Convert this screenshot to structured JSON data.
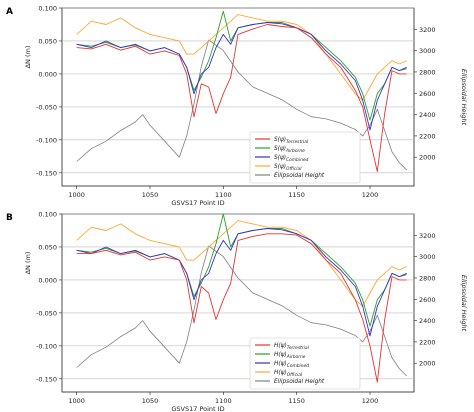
{
  "chart_data": [
    {
      "type": "line",
      "panel_label": "A",
      "xlabel": "GSVS17 Point ID",
      "ylabel": "ΔN (m)",
      "y2label": "Ellipsoidal Height",
      "xlim": [
        990,
        1230
      ],
      "ylim": [
        -0.17,
        0.1
      ],
      "y2lim": [
        1730,
        3400
      ],
      "xticks": [
        "1000",
        "1050",
        "1100",
        "1150",
        "1200"
      ],
      "yticks": [
        "0.100",
        "0.050",
        "0.000",
        "-0.050",
        "-0.100",
        "-0.150"
      ],
      "y2ticks": [
        "3200",
        "3000",
        "2800",
        "2600",
        "2400",
        "2200",
        "2000"
      ],
      "grid": true,
      "legend_position": "lower-center-right",
      "series": [
        {
          "name": "S(ψ)Terrestrial",
          "label_main": "S(ψ)",
          "label_sub": "Terrestrial",
          "color": "#e8332f",
          "axis": "left",
          "x": [
            1000,
            1010,
            1020,
            1030,
            1040,
            1050,
            1060,
            1070,
            1075,
            1080,
            1085,
            1090,
            1095,
            1100,
            1105,
            1110,
            1120,
            1130,
            1140,
            1150,
            1160,
            1170,
            1180,
            1190,
            1195,
            1200,
            1205,
            1210,
            1215,
            1220,
            1225
          ],
          "y": [
            0.04,
            0.038,
            0.045,
            0.036,
            0.042,
            0.03,
            0.035,
            0.028,
            0.0,
            -0.065,
            -0.015,
            -0.02,
            -0.06,
            -0.03,
            -0.005,
            0.06,
            0.068,
            0.075,
            0.072,
            0.07,
            0.055,
            0.03,
            0.01,
            -0.025,
            -0.05,
            -0.1,
            -0.148,
            -0.06,
            0.005,
            0.0,
            0.0
          ]
        },
        {
          "name": "S(ψ)Airborne",
          "label_main": "S(ψ)",
          "label_sub": "Airborne",
          "color": "#2ca02c",
          "axis": "left",
          "x": [
            1000,
            1010,
            1020,
            1030,
            1040,
            1050,
            1060,
            1070,
            1075,
            1080,
            1085,
            1090,
            1095,
            1100,
            1105,
            1110,
            1120,
            1130,
            1140,
            1150,
            1160,
            1170,
            1180,
            1190,
            1195,
            1200,
            1205,
            1210,
            1215,
            1220,
            1225
          ],
          "y": [
            0.045,
            0.042,
            0.048,
            0.04,
            0.044,
            0.035,
            0.04,
            0.03,
            0.01,
            -0.025,
            -0.005,
            0.02,
            0.055,
            0.095,
            0.05,
            0.07,
            0.075,
            0.078,
            0.078,
            0.07,
            0.06,
            0.04,
            0.02,
            -0.005,
            -0.03,
            -0.07,
            -0.03,
            -0.015,
            0.01,
            0.005,
            0.008
          ]
        },
        {
          "name": "S(ψ)Combined",
          "label_main": "S(ψ)",
          "label_sub": "Combined",
          "color": "#3333cc",
          "axis": "left",
          "x": [
            1000,
            1010,
            1020,
            1030,
            1040,
            1050,
            1060,
            1070,
            1075,
            1080,
            1085,
            1090,
            1095,
            1100,
            1105,
            1110,
            1120,
            1130,
            1140,
            1150,
            1160,
            1170,
            1180,
            1190,
            1195,
            1200,
            1205,
            1210,
            1215,
            1220,
            1225
          ],
          "y": [
            0.045,
            0.04,
            0.05,
            0.04,
            0.045,
            0.035,
            0.04,
            0.03,
            0.01,
            -0.03,
            0.0,
            0.01,
            0.04,
            0.06,
            0.045,
            0.07,
            0.075,
            0.078,
            0.076,
            0.07,
            0.06,
            0.035,
            0.015,
            -0.01,
            -0.04,
            -0.085,
            -0.04,
            -0.015,
            0.01,
            0.005,
            0.01
          ]
        },
        {
          "name": "S(ψ)Official",
          "label_main": "S(ψ)",
          "label_sub": "Official",
          "color": "#ffa733",
          "axis": "left",
          "x": [
            1000,
            1010,
            1020,
            1030,
            1040,
            1050,
            1060,
            1070,
            1075,
            1080,
            1085,
            1090,
            1095,
            1100,
            1105,
            1110,
            1120,
            1130,
            1140,
            1150,
            1160,
            1170,
            1180,
            1190,
            1195,
            1200,
            1205,
            1210,
            1215,
            1220,
            1225
          ],
          "y": [
            0.06,
            0.08,
            0.075,
            0.085,
            0.07,
            0.06,
            0.055,
            0.05,
            0.03,
            0.03,
            0.04,
            0.05,
            0.06,
            0.07,
            0.08,
            0.09,
            0.085,
            0.08,
            0.08,
            0.075,
            0.06,
            0.03,
            0.0,
            -0.03,
            -0.04,
            -0.02,
            0.0,
            0.01,
            0.02,
            0.015,
            0.02
          ]
        },
        {
          "name": "Ellipsoidal Height",
          "label_main": "Ellipsoidal Height",
          "label_sub": "",
          "color": "#808080",
          "axis": "right",
          "x": [
            1000,
            1010,
            1020,
            1030,
            1040,
            1045,
            1050,
            1060,
            1070,
            1075,
            1080,
            1085,
            1090,
            1100,
            1110,
            1120,
            1130,
            1140,
            1150,
            1160,
            1170,
            1180,
            1190,
            1195,
            1200,
            1205,
            1210,
            1215,
            1220,
            1225
          ],
          "y": [
            1960,
            2080,
            2150,
            2250,
            2330,
            2400,
            2300,
            2150,
            2000,
            2200,
            2500,
            2850,
            3100,
            3000,
            2800,
            2660,
            2600,
            2540,
            2450,
            2380,
            2360,
            2320,
            2260,
            2200,
            2300,
            2450,
            2250,
            2050,
            1950,
            1880
          ]
        }
      ]
    },
    {
      "type": "line",
      "panel_label": "B",
      "xlabel": "GSVS17 Point ID",
      "ylabel": "ΔN (m)",
      "y2label": "Ellipsoidal Height",
      "xlim": [
        990,
        1230
      ],
      "ylim": [
        -0.17,
        0.1
      ],
      "y2lim": [
        1730,
        3400
      ],
      "xticks": [
        "1000",
        "1050",
        "1100",
        "1150",
        "1200"
      ],
      "yticks": [
        "0.100",
        "0.050",
        "0.000",
        "-0.050",
        "-0.100",
        "-0.150"
      ],
      "y2ticks": [
        "3200",
        "3000",
        "2800",
        "2600",
        "2400",
        "2200",
        "2000"
      ],
      "grid": true,
      "legend_position": "lower-center-right",
      "series": [
        {
          "name": "H(ψ)Terrestrial",
          "label_main": "H(ψ)",
          "label_sub": "Terrestrial",
          "color": "#e8332f",
          "axis": "left",
          "x": [
            1000,
            1010,
            1020,
            1030,
            1040,
            1050,
            1060,
            1070,
            1075,
            1080,
            1085,
            1090,
            1095,
            1100,
            1105,
            1110,
            1120,
            1130,
            1140,
            1150,
            1160,
            1170,
            1180,
            1190,
            1195,
            1200,
            1205,
            1210,
            1215,
            1220,
            1225
          ],
          "y": [
            0.04,
            0.04,
            0.045,
            0.038,
            0.042,
            0.03,
            0.035,
            0.03,
            0.0,
            -0.065,
            -0.01,
            -0.02,
            -0.06,
            -0.03,
            -0.005,
            0.06,
            0.066,
            0.07,
            0.07,
            0.068,
            0.055,
            0.03,
            0.01,
            -0.03,
            -0.06,
            -0.1,
            -0.155,
            -0.06,
            0.005,
            0.0,
            0.0
          ]
        },
        {
          "name": "H(ψ)Airborne",
          "label_main": "H(ψ)",
          "label_sub": "Airborne",
          "color": "#2ca02c",
          "axis": "left",
          "x": [
            1000,
            1010,
            1020,
            1030,
            1040,
            1050,
            1060,
            1070,
            1075,
            1080,
            1085,
            1090,
            1095,
            1100,
            1105,
            1110,
            1120,
            1130,
            1140,
            1150,
            1160,
            1170,
            1180,
            1190,
            1195,
            1200,
            1205,
            1210,
            1215,
            1220,
            1225
          ],
          "y": [
            0.045,
            0.042,
            0.048,
            0.04,
            0.044,
            0.035,
            0.04,
            0.03,
            0.01,
            -0.025,
            -0.005,
            0.02,
            0.055,
            0.1,
            0.05,
            0.07,
            0.075,
            0.078,
            0.078,
            0.07,
            0.06,
            0.04,
            0.02,
            -0.005,
            -0.03,
            -0.07,
            -0.03,
            -0.015,
            0.01,
            0.005,
            0.008
          ]
        },
        {
          "name": "H(ψ)Combined",
          "label_main": "H(ψ)",
          "label_sub": "Combined",
          "color": "#3333cc",
          "axis": "left",
          "x": [
            1000,
            1010,
            1020,
            1030,
            1040,
            1050,
            1060,
            1070,
            1075,
            1080,
            1085,
            1090,
            1095,
            1100,
            1105,
            1110,
            1120,
            1130,
            1140,
            1150,
            1160,
            1170,
            1180,
            1190,
            1195,
            1200,
            1205,
            1210,
            1215,
            1220,
            1225
          ],
          "y": [
            0.045,
            0.04,
            0.05,
            0.04,
            0.045,
            0.035,
            0.04,
            0.03,
            0.01,
            -0.03,
            0.0,
            0.01,
            0.04,
            0.06,
            0.045,
            0.07,
            0.075,
            0.078,
            0.076,
            0.07,
            0.06,
            0.035,
            0.015,
            -0.01,
            -0.04,
            -0.085,
            -0.04,
            -0.015,
            0.01,
            0.005,
            0.01
          ]
        },
        {
          "name": "H(ψ)Official",
          "label_main": "H(ψ)",
          "label_sub": "Official",
          "color": "#ffa733",
          "axis": "left",
          "x": [
            1000,
            1010,
            1020,
            1030,
            1040,
            1050,
            1060,
            1070,
            1075,
            1080,
            1085,
            1090,
            1095,
            1100,
            1105,
            1110,
            1120,
            1130,
            1140,
            1150,
            1160,
            1170,
            1180,
            1190,
            1195,
            1200,
            1205,
            1210,
            1215,
            1220,
            1225
          ],
          "y": [
            0.06,
            0.08,
            0.075,
            0.085,
            0.07,
            0.06,
            0.055,
            0.05,
            0.03,
            0.03,
            0.04,
            0.05,
            0.06,
            0.07,
            0.08,
            0.09,
            0.085,
            0.08,
            0.08,
            0.075,
            0.06,
            0.03,
            0.0,
            -0.03,
            -0.04,
            -0.02,
            0.0,
            0.01,
            0.02,
            0.015,
            0.02
          ]
        },
        {
          "name": "Ellipsoidal Height",
          "label_main": "Ellipsoidal Height",
          "label_sub": "",
          "color": "#808080",
          "axis": "right",
          "x": [
            1000,
            1010,
            1020,
            1030,
            1040,
            1045,
            1050,
            1060,
            1070,
            1075,
            1080,
            1085,
            1090,
            1100,
            1110,
            1120,
            1130,
            1140,
            1150,
            1160,
            1170,
            1180,
            1190,
            1195,
            1200,
            1205,
            1210,
            1215,
            1220,
            1225
          ],
          "y": [
            1960,
            2080,
            2150,
            2250,
            2330,
            2400,
            2300,
            2150,
            2000,
            2200,
            2500,
            2850,
            3100,
            3000,
            2800,
            2660,
            2600,
            2540,
            2450,
            2380,
            2360,
            2320,
            2260,
            2200,
            2300,
            2450,
            2250,
            2050,
            1950,
            1880
          ]
        }
      ]
    }
  ]
}
